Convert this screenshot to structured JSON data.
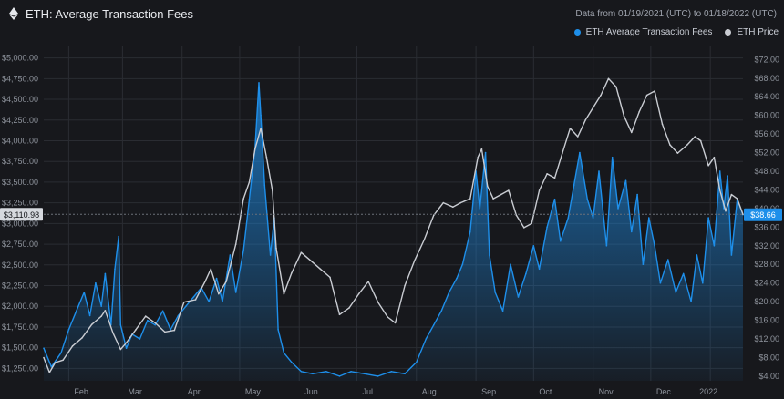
{
  "header": {
    "title": "ETH: Average Transaction Fees",
    "date_range": "Data from 01/19/2021 (UTC) to 01/18/2022 (UTC)",
    "legend": [
      {
        "label": "ETH Average Transaction Fees",
        "color": "#1e8fea"
      },
      {
        "label": "ETH Price",
        "color": "#c9ccd2"
      }
    ]
  },
  "colors": {
    "background": "#17181c",
    "fees": "#1e8fea",
    "price": "#c9ccd2",
    "grid": "#2a2c32"
  },
  "chart_data": {
    "type": "line",
    "left_axis": {
      "series": "ETH Price",
      "min": 1100,
      "max": 5150,
      "ticks": [
        "$5,000.00",
        "$4,750.00",
        "$4,500.00",
        "$4,250.00",
        "$4,000.00",
        "$3,750.00",
        "$3,500.00",
        "$3,250.00",
        "$3,000.00",
        "$2,750.00",
        "$2,500.00",
        "$2,250.00",
        "$2,000.00",
        "$1,750.00",
        "$1,500.00",
        "$1,250.00"
      ],
      "tick_values": [
        5000,
        4750,
        4500,
        4250,
        4000,
        3750,
        3500,
        3250,
        3000,
        2750,
        2500,
        2250,
        2000,
        1750,
        1500,
        1250
      ],
      "current_value_label": "$3,110.98",
      "current_value": 3110.98
    },
    "right_axis": {
      "series": "ETH Average Transaction Fees",
      "min": 3,
      "max": 75,
      "ticks": [
        "$72.00",
        "$68.00",
        "$64.00",
        "$60.00",
        "$56.00",
        "$52.00",
        "$48.00",
        "$44.00",
        "$40.00",
        "$36.00",
        "$32.00",
        "$28.00",
        "$24.00",
        "$20.00",
        "$16.00",
        "$12.00",
        "$8.00",
        "$4.00"
      ],
      "tick_values": [
        72,
        68,
        64,
        60,
        56,
        52,
        48,
        44,
        40,
        36,
        32,
        28,
        24,
        20,
        16,
        12,
        8,
        4
      ],
      "current_value_label": "$38.66",
      "current_value": 38.66
    },
    "x_axis": {
      "labels": [
        "Feb",
        "Mar",
        "Apr",
        "May",
        "Jun",
        "Jul",
        "Aug",
        "Sep",
        "Oct",
        "Nov",
        "Dec",
        "2022"
      ],
      "label_dates": [
        "2021-02-01",
        "2021-03-01",
        "2021-04-01",
        "2021-05-01",
        "2021-06-01",
        "2021-07-01",
        "2021-08-01",
        "2021-09-01",
        "2021-10-01",
        "2021-11-01",
        "2021-12-01",
        "2022-01-01"
      ],
      "start": "2021-01-19",
      "end": "2022-01-18"
    },
    "series": [
      {
        "name": "ETH Average Transaction Fees",
        "axis": "right",
        "style": "area",
        "points": [
          [
            "2021-01-19",
            10
          ],
          [
            "2021-01-23",
            6
          ],
          [
            "2021-01-28",
            9
          ],
          [
            "2021-02-01",
            14
          ],
          [
            "2021-02-05",
            18
          ],
          [
            "2021-02-09",
            22
          ],
          [
            "2021-02-12",
            17
          ],
          [
            "2021-02-15",
            24
          ],
          [
            "2021-02-18",
            19
          ],
          [
            "2021-02-20",
            26
          ],
          [
            "2021-02-23",
            15
          ],
          [
            "2021-02-25",
            27
          ],
          [
            "2021-02-27",
            34
          ],
          [
            "2021-02-28",
            15
          ],
          [
            "2021-03-03",
            10
          ],
          [
            "2021-03-06",
            13
          ],
          [
            "2021-03-10",
            12
          ],
          [
            "2021-03-14",
            16
          ],
          [
            "2021-03-18",
            15
          ],
          [
            "2021-03-22",
            18
          ],
          [
            "2021-03-26",
            14
          ],
          [
            "2021-03-30",
            17
          ],
          [
            "2021-04-03",
            19
          ],
          [
            "2021-04-07",
            21
          ],
          [
            "2021-04-11",
            23
          ],
          [
            "2021-04-15",
            20
          ],
          [
            "2021-04-19",
            25
          ],
          [
            "2021-04-22",
            20
          ],
          [
            "2021-04-26",
            30
          ],
          [
            "2021-04-29",
            22
          ],
          [
            "2021-05-03",
            31
          ],
          [
            "2021-05-06",
            42
          ],
          [
            "2021-05-09",
            53
          ],
          [
            "2021-05-11",
            67
          ],
          [
            "2021-05-12",
            60
          ],
          [
            "2021-05-14",
            45
          ],
          [
            "2021-05-17",
            30
          ],
          [
            "2021-05-19",
            38
          ],
          [
            "2021-05-21",
            14
          ],
          [
            "2021-05-24",
            9
          ],
          [
            "2021-05-28",
            7
          ],
          [
            "2021-06-02",
            5
          ],
          [
            "2021-06-08",
            4.5
          ],
          [
            "2021-06-15",
            5
          ],
          [
            "2021-06-22",
            4
          ],
          [
            "2021-06-28",
            5
          ],
          [
            "2021-07-05",
            4.5
          ],
          [
            "2021-07-12",
            4
          ],
          [
            "2021-07-19",
            5
          ],
          [
            "2021-07-26",
            4.5
          ],
          [
            "2021-08-01",
            7
          ],
          [
            "2021-08-06",
            12
          ],
          [
            "2021-08-10",
            15
          ],
          [
            "2021-08-14",
            18
          ],
          [
            "2021-08-18",
            22
          ],
          [
            "2021-08-22",
            25
          ],
          [
            "2021-08-25",
            28
          ],
          [
            "2021-08-29",
            35
          ],
          [
            "2021-09-01",
            48
          ],
          [
            "2021-09-03",
            40
          ],
          [
            "2021-09-06",
            52
          ],
          [
            "2021-09-08",
            30
          ],
          [
            "2021-09-11",
            22
          ],
          [
            "2021-09-15",
            18
          ],
          [
            "2021-09-19",
            28
          ],
          [
            "2021-09-23",
            21
          ],
          [
            "2021-09-27",
            26
          ],
          [
            "2021-10-01",
            32
          ],
          [
            "2021-10-04",
            27
          ],
          [
            "2021-10-08",
            36
          ],
          [
            "2021-10-12",
            42
          ],
          [
            "2021-10-15",
            33
          ],
          [
            "2021-10-19",
            38
          ],
          [
            "2021-10-22",
            45
          ],
          [
            "2021-10-25",
            52
          ],
          [
            "2021-10-29",
            42
          ],
          [
            "2021-11-01",
            38
          ],
          [
            "2021-11-04",
            48
          ],
          [
            "2021-11-08",
            32
          ],
          [
            "2021-11-11",
            51
          ],
          [
            "2021-11-14",
            40
          ],
          [
            "2021-11-18",
            46
          ],
          [
            "2021-11-21",
            35
          ],
          [
            "2021-11-24",
            43
          ],
          [
            "2021-11-27",
            28
          ],
          [
            "2021-11-30",
            38
          ],
          [
            "2021-12-03",
            32
          ],
          [
            "2021-12-06",
            24
          ],
          [
            "2021-12-10",
            29
          ],
          [
            "2021-12-14",
            22
          ],
          [
            "2021-12-18",
            26
          ],
          [
            "2021-12-22",
            20
          ],
          [
            "2021-12-25",
            30
          ],
          [
            "2021-12-28",
            24
          ],
          [
            "2021-12-31",
            38
          ],
          [
            "2022-01-03",
            32
          ],
          [
            "2022-01-06",
            48
          ],
          [
            "2022-01-08",
            40
          ],
          [
            "2022-01-10",
            47
          ],
          [
            "2022-01-12",
            30
          ],
          [
            "2022-01-15",
            42
          ],
          [
            "2022-01-18",
            38.66
          ]
        ]
      },
      {
        "name": "ETH Price",
        "axis": "left",
        "style": "line",
        "points": [
          [
            "2021-01-19",
            1380
          ],
          [
            "2021-01-22",
            1200
          ],
          [
            "2021-01-25",
            1320
          ],
          [
            "2021-01-29",
            1350
          ],
          [
            "2021-02-03",
            1520
          ],
          [
            "2021-02-08",
            1620
          ],
          [
            "2021-02-13",
            1780
          ],
          [
            "2021-02-18",
            1880
          ],
          [
            "2021-02-20",
            1950
          ],
          [
            "2021-02-24",
            1680
          ],
          [
            "2021-02-28",
            1480
          ],
          [
            "2021-03-03",
            1560
          ],
          [
            "2021-03-08",
            1720
          ],
          [
            "2021-03-13",
            1880
          ],
          [
            "2021-03-18",
            1800
          ],
          [
            "2021-03-23",
            1690
          ],
          [
            "2021-03-28",
            1710
          ],
          [
            "2021-04-02",
            2050
          ],
          [
            "2021-04-08",
            2080
          ],
          [
            "2021-04-13",
            2300
          ],
          [
            "2021-04-16",
            2450
          ],
          [
            "2021-04-20",
            2150
          ],
          [
            "2021-04-24",
            2300
          ],
          [
            "2021-04-29",
            2750
          ],
          [
            "2021-05-03",
            3300
          ],
          [
            "2021-05-06",
            3500
          ],
          [
            "2021-05-09",
            3900
          ],
          [
            "2021-05-12",
            4150
          ],
          [
            "2021-05-15",
            3800
          ],
          [
            "2021-05-18",
            3400
          ],
          [
            "2021-05-20",
            2700
          ],
          [
            "2021-05-24",
            2150
          ],
          [
            "2021-05-28",
            2400
          ],
          [
            "2021-06-02",
            2650
          ],
          [
            "2021-06-07",
            2550
          ],
          [
            "2021-06-12",
            2450
          ],
          [
            "2021-06-17",
            2350
          ],
          [
            "2021-06-22",
            1900
          ],
          [
            "2021-06-27",
            1980
          ],
          [
            "2021-07-02",
            2150
          ],
          [
            "2021-07-07",
            2300
          ],
          [
            "2021-07-12",
            2050
          ],
          [
            "2021-07-17",
            1870
          ],
          [
            "2021-07-21",
            1800
          ],
          [
            "2021-07-26",
            2250
          ],
          [
            "2021-07-31",
            2550
          ],
          [
            "2021-08-05",
            2800
          ],
          [
            "2021-08-10",
            3100
          ],
          [
            "2021-08-15",
            3250
          ],
          [
            "2021-08-20",
            3200
          ],
          [
            "2021-08-24",
            3250
          ],
          [
            "2021-08-29",
            3300
          ],
          [
            "2021-09-02",
            3800
          ],
          [
            "2021-09-04",
            3900
          ],
          [
            "2021-09-07",
            3450
          ],
          [
            "2021-09-10",
            3300
          ],
          [
            "2021-09-14",
            3350
          ],
          [
            "2021-09-18",
            3400
          ],
          [
            "2021-09-22",
            3100
          ],
          [
            "2021-09-26",
            2950
          ],
          [
            "2021-09-30",
            3000
          ],
          [
            "2021-10-04",
            3400
          ],
          [
            "2021-10-08",
            3600
          ],
          [
            "2021-10-12",
            3550
          ],
          [
            "2021-10-16",
            3850
          ],
          [
            "2021-10-20",
            4150
          ],
          [
            "2021-10-24",
            4050
          ],
          [
            "2021-10-28",
            4250
          ],
          [
            "2021-11-01",
            4400
          ],
          [
            "2021-11-05",
            4550
          ],
          [
            "2021-11-09",
            4750
          ],
          [
            "2021-11-13",
            4650
          ],
          [
            "2021-11-17",
            4300
          ],
          [
            "2021-11-21",
            4100
          ],
          [
            "2021-11-25",
            4350
          ],
          [
            "2021-11-29",
            4550
          ],
          [
            "2021-12-03",
            4600
          ],
          [
            "2021-12-07",
            4200
          ],
          [
            "2021-12-11",
            3950
          ],
          [
            "2021-12-15",
            3850
          ],
          [
            "2021-12-20",
            3950
          ],
          [
            "2021-12-24",
            4050
          ],
          [
            "2021-12-27",
            4000
          ],
          [
            "2021-12-31",
            3700
          ],
          [
            "2022-01-03",
            3800
          ],
          [
            "2022-01-06",
            3400
          ],
          [
            "2022-01-09",
            3150
          ],
          [
            "2022-01-12",
            3350
          ],
          [
            "2022-01-15",
            3300
          ],
          [
            "2022-01-18",
            3110.98
          ]
        ]
      }
    ],
    "grid": true
  }
}
